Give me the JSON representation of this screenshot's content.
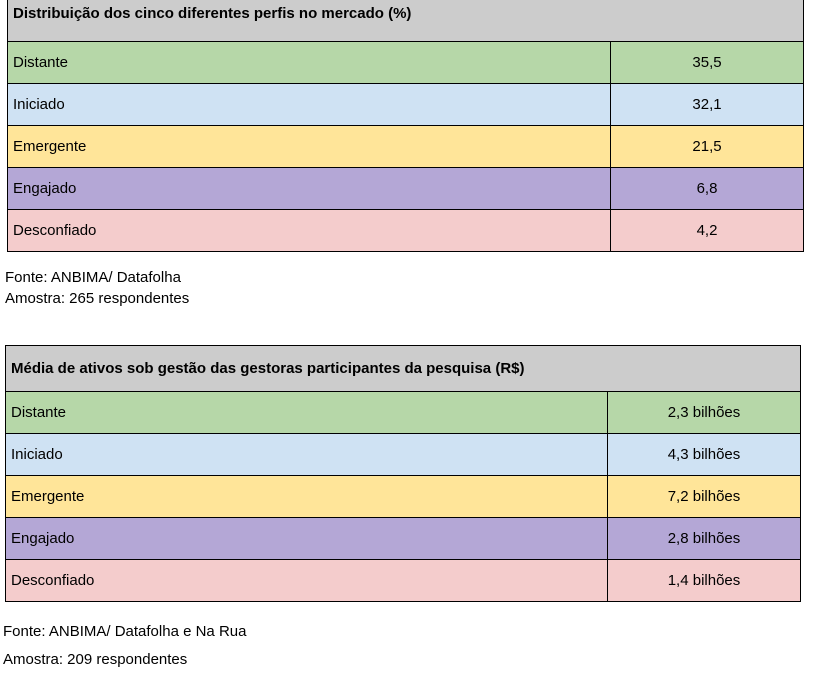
{
  "table1": {
    "title": "Distribuição dos cinco diferentes perfis no mercado (%)",
    "rows": [
      {
        "label": "Distante",
        "value": "35,5",
        "color": "#b6d7a8"
      },
      {
        "label": "Iniciado",
        "value": "32,1",
        "color": "#cfe2f3"
      },
      {
        "label": "Emergente",
        "value": "21,5",
        "color": "#ffe599"
      },
      {
        "label": "Engajado",
        "value": "6,8",
        "color": "#b4a7d6"
      },
      {
        "label": "Desconfiado",
        "value": "4,2",
        "color": "#f4cccc"
      }
    ],
    "source": "Fonte: ANBIMA/ Datafolha",
    "sample": "Amostra: 265 respondentes"
  },
  "table2": {
    "title": "Média de ativos sob gestão das gestoras participantes da pesquisa (R$)",
    "rows": [
      {
        "label": "Distante",
        "value": "2,3 bilhões",
        "color": "#b6d7a8"
      },
      {
        "label": "Iniciado",
        "value": "4,3 bilhões",
        "color": "#cfe2f3"
      },
      {
        "label": "Emergente",
        "value": "7,2 bilhões",
        "color": "#ffe599"
      },
      {
        "label": "Engajado",
        "value": "2,8 bilhões",
        "color": "#b4a7d6"
      },
      {
        "label": "Desconfiado",
        "value": "1,4 bilhões",
        "color": "#f4cccc"
      }
    ],
    "source": "Fonte: ANBIMA/ Datafolha e Na Rua",
    "sample": "Amostra: 209 respondentes"
  }
}
